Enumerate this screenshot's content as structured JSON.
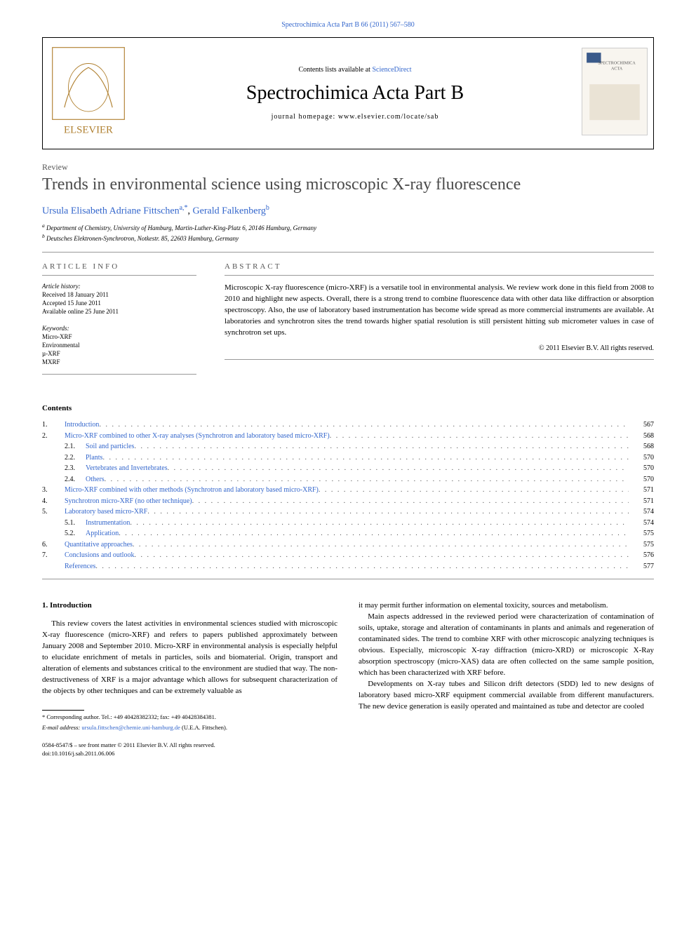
{
  "journal_ref_link": "Spectrochimica Acta Part B 66 (2011) 567–580",
  "header": {
    "contents_prefix": "Contents lists available at ",
    "contents_link": "ScienceDirect",
    "journal_title": "Spectrochimica Acta Part B",
    "homepage_prefix": "journal homepage: ",
    "homepage_url": "www.elsevier.com/locate/sab"
  },
  "article_type": "Review",
  "title": "Trends in environmental science using microscopic X-ray fluorescence",
  "authors": [
    {
      "name": "Ursula Elisabeth Adriane Fittschen",
      "marks": "a,*"
    },
    {
      "name": "Gerald Falkenberg",
      "marks": "b"
    }
  ],
  "author_sep": ", ",
  "affiliations": [
    {
      "mark": "a",
      "text": "Department of Chemistry, University of Hamburg, Martin-Luther-King-Platz 6, 20146 Hamburg, Germany"
    },
    {
      "mark": "b",
      "text": "Deutsches Elektronen-Synchrotron, Notkestr. 85, 22603 Hamburg, Germany"
    }
  ],
  "article_info": {
    "heading": "article info",
    "history_label": "Article history:",
    "history": [
      "Received 18 January 2011",
      "Accepted 15 June 2011",
      "Available online 25 June 2011"
    ],
    "keywords_label": "Keywords:",
    "keywords": [
      "Micro-XRF",
      "Environmental",
      "µ-XRF",
      "MXRF"
    ]
  },
  "abstract": {
    "heading": "abstract",
    "text": "Microscopic X-ray fluorescence (micro-XRF) is a versatile tool in environmental analysis. We review work done in this field from 2008 to 2010 and highlight new aspects. Overall, there is a strong trend to combine fluorescence data with other data like diffraction or absorption spectroscopy. Also, the use of laboratory based instrumentation has become wide spread as more commercial instruments are available. At laboratories and synchrotron sites the trend towards higher spatial resolution is still persistent hitting sub micrometer values in case of synchrotron set ups.",
    "copyright": "© 2011 Elsevier B.V. All rights reserved."
  },
  "contents": {
    "heading": "Contents",
    "items": [
      {
        "num": "1.",
        "title": "Introduction",
        "page": "567",
        "lvl": 1
      },
      {
        "num": "2.",
        "title": "Micro-XRF combined to other X-ray analyses (Synchrotron and laboratory based micro-XRF)",
        "page": "568",
        "lvl": 1
      },
      {
        "num": "2.1.",
        "title": "Soil and particles",
        "page": "568",
        "lvl": 2
      },
      {
        "num": "2.2.",
        "title": "Plants",
        "page": "570",
        "lvl": 2
      },
      {
        "num": "2.3.",
        "title": "Vertebrates and Invertebrates",
        "page": "570",
        "lvl": 2
      },
      {
        "num": "2.4.",
        "title": "Others",
        "page": "570",
        "lvl": 2
      },
      {
        "num": "3.",
        "title": "Micro-XRF combined with other methods (Synchrotron and laboratory based micro-XRF)",
        "page": "571",
        "lvl": 1
      },
      {
        "num": "4.",
        "title": "Synchrotron micro-XRF (no other technique)",
        "page": "571",
        "lvl": 1
      },
      {
        "num": "5.",
        "title": "Laboratory based micro-XRF",
        "page": "574",
        "lvl": 1
      },
      {
        "num": "5.1.",
        "title": "Instrumentation",
        "page": "574",
        "lvl": 2
      },
      {
        "num": "5.2.",
        "title": "Application",
        "page": "575",
        "lvl": 2
      },
      {
        "num": "6.",
        "title": "Quantitative approaches",
        "page": "575",
        "lvl": 1
      },
      {
        "num": "7.",
        "title": "Conclusions and outlook",
        "page": "576",
        "lvl": 1
      },
      {
        "num": "",
        "title": "References",
        "page": "577",
        "lvl": 1
      }
    ]
  },
  "body": {
    "section_heading": "1. Introduction",
    "col1": [
      "This review covers the latest activities in environmental sciences studied with microscopic X-ray fluorescence (micro-XRF) and refers to papers published approximately between January 2008 and September 2010. Micro-XRF in environmental analysis is especially helpful to elucidate enrichment of metals in particles, soils and biomaterial. Origin, transport and alteration of elements and substances critical to the environment are studied that way. The non-destructiveness of XRF is a major advantage which allows for subsequent characterization of the objects by other techniques and can be extremely valuable as"
    ],
    "col2": [
      "it may permit further information on elemental toxicity, sources and metabolism.",
      "Main aspects addressed in the reviewed period were characterization of contamination of soils, uptake, storage and alteration of contaminants in plants and animals and regeneration of contaminated sides. The trend to combine XRF with other microscopic analyzing techniques is obvious. Especially, microscopic X-ray diffraction (micro-XRD) or microscopic X-Ray absorption spectroscopy (micro-XAS) data are often collected on the same sample position, which has been characterized with XRF before.",
      "Developments on X-ray tubes and Silicon drift detectors (SDD) led to new designs of laboratory based micro-XRF equipment commercial available from different manufacturers. The new device generation is easily operated and maintained as tube and detector are cooled"
    ]
  },
  "footnotes": {
    "corresponding": "* Corresponding author. Tel.: +49 40428382332; fax: +49 40428384381.",
    "email_label": "E-mail address: ",
    "email": "ursula.fittschen@chemie.uni-hamburg.de",
    "email_author": " (U.E.A. Fittschen)."
  },
  "footer": {
    "issn": "0584-8547/$ – see front matter © 2011 Elsevier B.V. All rights reserved.",
    "doi": "doi:10.1016/j.sab.2011.06.006"
  },
  "colors": {
    "link": "#3366cc",
    "text": "#000000",
    "muted": "#555555"
  }
}
